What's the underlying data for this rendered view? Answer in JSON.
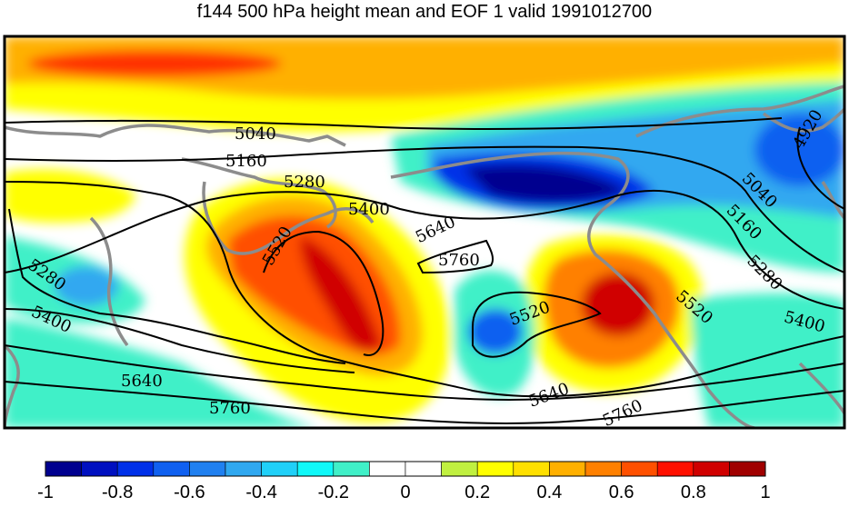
{
  "title": "f144 500 hPa height mean and EOF 1 valid 1991012700",
  "contour_labels": [
    "5040",
    "5160",
    "5280",
    "5400",
    "5520",
    "5640",
    "5760",
    "4920"
  ],
  "colorbar": {
    "tick_labels": [
      "-1",
      "-0.8",
      "-0.6",
      "-0.4",
      "-0.2",
      "0",
      "0.2",
      "0.4",
      "0.6",
      "0.8",
      "1"
    ],
    "colors": [
      "#00008f",
      "#0010c0",
      "#0030e8",
      "#1060f0",
      "#2080f0",
      "#30a8f0",
      "#20d0f8",
      "#10f8f8",
      "#40f0c8",
      "#ffffff",
      "#ffffff",
      "#c0f040",
      "#ffff00",
      "#ffe000",
      "#ffb000",
      "#ff8000",
      "#ff5000",
      "#ff1000",
      "#d00000",
      "#a00000"
    ]
  },
  "legend_icons": {
    "coastline": "coastline-icon"
  }
}
